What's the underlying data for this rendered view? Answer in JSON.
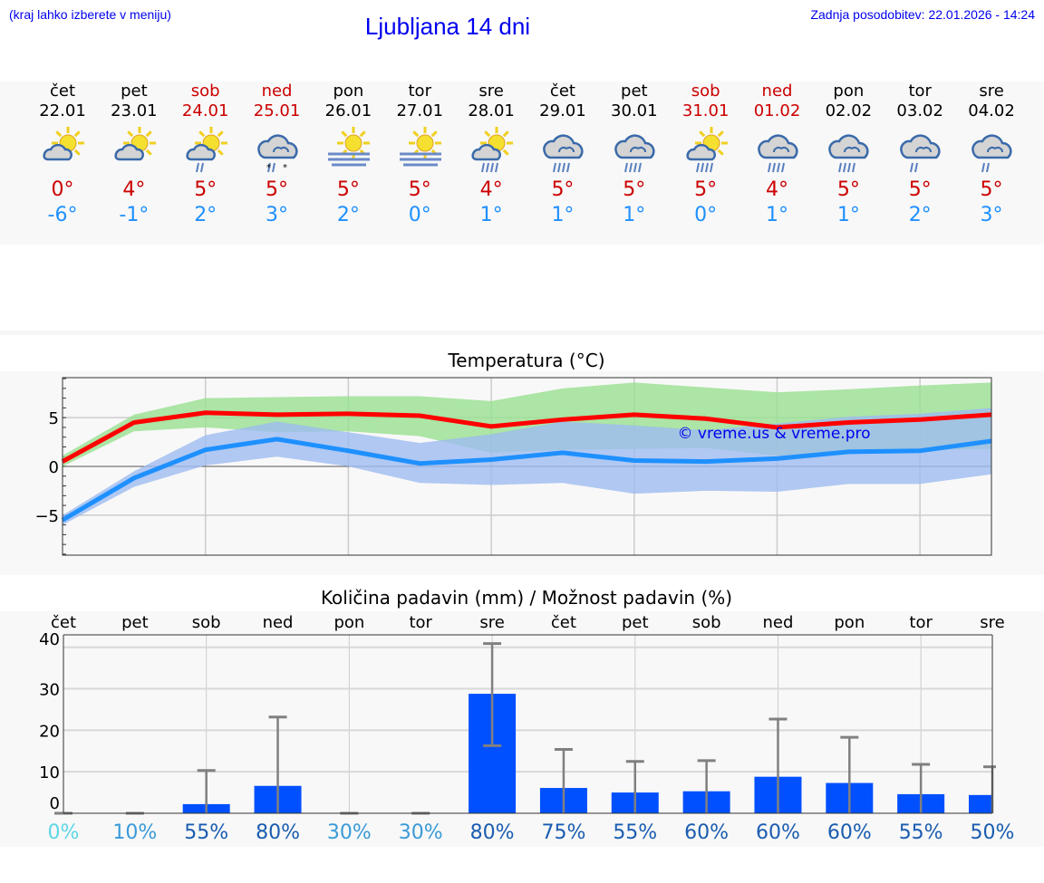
{
  "header": {
    "hint": "(kraj lahko izberete v meniju)",
    "title": "Ljubljana 14 dni",
    "updated": "Zadnja posodobitev: 22.01.2026 - 14:24"
  },
  "days": [
    {
      "name": "čet",
      "date": "22.01",
      "weekend": false,
      "icon": "sun-cloud",
      "max": "0°",
      "min": "-6°"
    },
    {
      "name": "pet",
      "date": "23.01",
      "weekend": false,
      "icon": "sun-cloud",
      "max": "4°",
      "min": "-1°"
    },
    {
      "name": "sob",
      "date": "24.01",
      "weekend": true,
      "icon": "sun-cloud-light-rain",
      "max": "5°",
      "min": "2°"
    },
    {
      "name": "ned",
      "date": "25.01",
      "weekend": true,
      "icon": "cloud-sleet",
      "max": "5°",
      "min": "3°"
    },
    {
      "name": "pon",
      "date": "26.01",
      "weekend": false,
      "icon": "sun-fog",
      "max": "5°",
      "min": "2°"
    },
    {
      "name": "tor",
      "date": "27.01",
      "weekend": false,
      "icon": "sun-fog",
      "max": "5°",
      "min": "0°"
    },
    {
      "name": "sre",
      "date": "28.01",
      "weekend": false,
      "icon": "sun-cloud-rain",
      "max": "4°",
      "min": "1°"
    },
    {
      "name": "čet",
      "date": "29.01",
      "weekend": false,
      "icon": "cloud-rain",
      "max": "5°",
      "min": "1°"
    },
    {
      "name": "pet",
      "date": "30.01",
      "weekend": false,
      "icon": "cloud-rain",
      "max": "5°",
      "min": "1°"
    },
    {
      "name": "sob",
      "date": "31.01",
      "weekend": true,
      "icon": "sun-cloud-rain",
      "max": "5°",
      "min": "0°"
    },
    {
      "name": "ned",
      "date": "01.02",
      "weekend": true,
      "icon": "cloud-rain",
      "max": "4°",
      "min": "1°"
    },
    {
      "name": "pon",
      "date": "02.02",
      "weekend": false,
      "icon": "cloud-rain",
      "max": "5°",
      "min": "1°"
    },
    {
      "name": "tor",
      "date": "03.02",
      "weekend": false,
      "icon": "cloud-light-rain",
      "max": "5°",
      "min": "2°"
    },
    {
      "name": "sre",
      "date": "04.02",
      "weekend": false,
      "icon": "cloud-light-rain",
      "max": "5°",
      "min": "3°"
    }
  ],
  "chart_data": [
    {
      "type": "line",
      "title": "Temperatura (°C)",
      "watermark": "© vreme.us & vreme.pro",
      "ylim": [
        -9.1,
        9.1
      ],
      "yticks": [
        {
          "v": 5,
          "label": "5"
        },
        {
          "v": 0,
          "label": "0"
        },
        {
          "v": -5,
          "label": "−5"
        }
      ],
      "grid": true,
      "colors": {
        "max": "#ff0000",
        "min": "#1e90ff",
        "max_band": "#98e090",
        "min_band": "#9dbcf0"
      },
      "series": [
        {
          "key": "max",
          "values": [
            0.5,
            4.5,
            5.5,
            5.3,
            5.4,
            5.2,
            4.1,
            4.8,
            5.3,
            4.9,
            4.0,
            4.5,
            4.8,
            5.3
          ],
          "band_low": [
            0,
            3.6,
            4.0,
            3.5,
            3.6,
            3.1,
            1.4,
            1.7,
            1.8,
            1.9,
            1.1,
            1.4,
            1.7,
            1.8
          ],
          "band_high": [
            1.1,
            5.3,
            7.0,
            7.1,
            7.2,
            7.2,
            6.7,
            8.0,
            8.6,
            8.1,
            7.6,
            7.9,
            8.3,
            8.6
          ]
        },
        {
          "key": "min",
          "values": [
            -5.5,
            -1.2,
            1.7,
            2.8,
            1.6,
            0.3,
            0.7,
            1.4,
            0.6,
            0.5,
            0.8,
            1.5,
            1.6,
            2.6
          ],
          "band_low": [
            -6.0,
            -2.1,
            0.1,
            1.0,
            0,
            -1.7,
            -1.9,
            -1.7,
            -2.8,
            -2.5,
            -2.6,
            -1.8,
            -1.8,
            -0.8
          ],
          "band_high": [
            -5.0,
            -0.5,
            3.2,
            4.6,
            3.5,
            2.4,
            3.3,
            4.6,
            4.2,
            3.7,
            4.4,
            5.1,
            5.4,
            6.0
          ]
        }
      ]
    },
    {
      "type": "bar",
      "title": "Količina padavin (mm) / Možnost padavin (%)",
      "categories": [
        "čet",
        "pet",
        "sob",
        "ned",
        "pon",
        "tor",
        "sre",
        "čet",
        "pet",
        "sob",
        "ned",
        "pon",
        "tor",
        "sre"
      ],
      "ylim": [
        0,
        43
      ],
      "yticks": [
        0,
        10,
        20,
        30,
        40
      ],
      "grid": true,
      "bar_color": "#0050ff",
      "values": [
        0,
        0,
        2.2,
        6.6,
        0,
        0,
        28.8,
        6.1,
        5.0,
        5.3,
        8.8,
        7.3,
        4.6,
        4.4
      ],
      "error_low": [
        null,
        null,
        null,
        null,
        null,
        null,
        16.3,
        null,
        null,
        null,
        null,
        null,
        null,
        null
      ],
      "error_high": [
        0,
        0,
        10.3,
        23.2,
        0,
        0,
        40.9,
        15.4,
        12.5,
        12.7,
        22.7,
        18.3,
        11.8,
        11.2
      ],
      "probability": [
        "0%",
        "10%",
        "55%",
        "80%",
        "30%",
        "30%",
        "80%",
        "75%",
        "55%",
        "60%",
        "60%",
        "60%",
        "55%",
        "50%"
      ]
    }
  ]
}
